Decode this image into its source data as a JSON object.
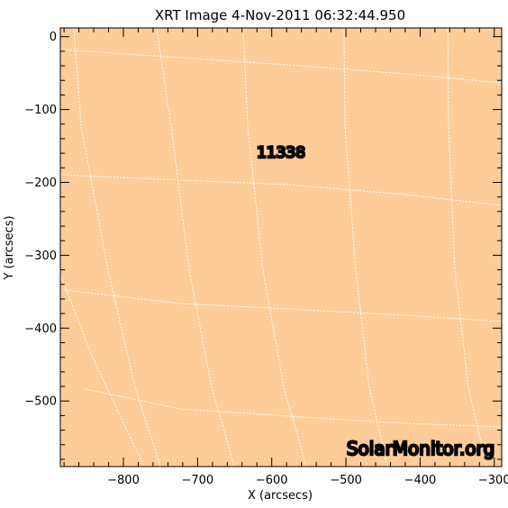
{
  "plot": {
    "title": "XRT Image   4-Nov-2011 06:32:44.950",
    "xlabel": "X (arcsecs)",
    "ylabel": "Y (arcsecs)",
    "x_ticks": [
      "−800",
      "−700",
      "−600",
      "−500",
      "−400",
      "−300"
    ],
    "y_ticks": [
      "0",
      "−100",
      "−200",
      "−300",
      "−400",
      "−500"
    ],
    "xlim": [
      -885,
      -290
    ],
    "ylim": [
      -590,
      12
    ],
    "region_label": "11338",
    "watermark": "SolarMonitor.org",
    "image_color": "#fecc98",
    "grid_color": "#ffffff"
  }
}
